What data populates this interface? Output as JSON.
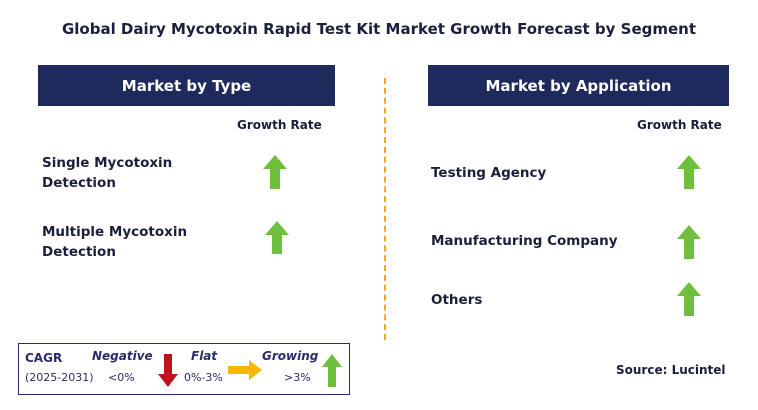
{
  "title": "Global Dairy Mycotoxin Rapid Test Kit Market Growth Forecast by Segment",
  "left_panel": {
    "header": "Market by Type",
    "growth_label": "Growth Rate",
    "segments": [
      {
        "line1": "Single Mycotoxin",
        "line2": "Detection",
        "trend": "growing"
      },
      {
        "line1": "Multiple Mycotoxin",
        "line2": "Detection",
        "trend": "growing"
      }
    ]
  },
  "right_panel": {
    "header": "Market by Application",
    "growth_label": "Growth Rate",
    "segments": [
      {
        "label": "Testing Agency",
        "trend": "growing"
      },
      {
        "label": "Manufacturing Company",
        "trend": "growing"
      },
      {
        "label": "Others",
        "trend": "growing"
      }
    ]
  },
  "legend": {
    "cagr": "CAGR",
    "period": "(2025-2031)",
    "negative": {
      "label": "Negative",
      "range": "<0%",
      "icon": "red-down-arrow-icon"
    },
    "flat": {
      "label": "Flat",
      "range": "0%-3%",
      "icon": "yellow-right-arrow-icon"
    },
    "growing": {
      "label": "Growing",
      "range": ">3%",
      "icon": "green-up-arrow-icon"
    }
  },
  "source": "Source: Lucintel",
  "colors": {
    "header_bg": "#1f2a5c",
    "divider": "#f5a623",
    "growing": "#6fbf3f",
    "negative": "#c0111f",
    "flat": "#f5b800"
  }
}
